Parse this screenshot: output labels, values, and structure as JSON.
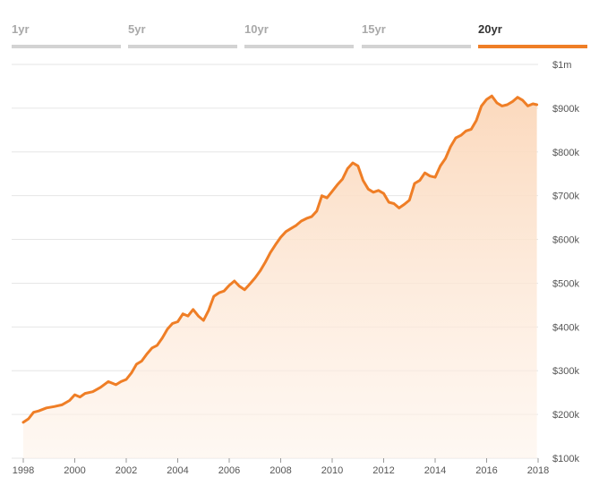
{
  "tabs": [
    {
      "label": "1yr",
      "active": false
    },
    {
      "label": "5yr",
      "active": false
    },
    {
      "label": "10yr",
      "active": false
    },
    {
      "label": "15yr",
      "active": false
    },
    {
      "label": "20yr",
      "active": true
    }
  ],
  "colors": {
    "accent": "#ef7e26",
    "inactive_tab_bar": "#d3d3d3",
    "inactive_tab_text": "#a9a9a9",
    "active_tab_text": "#333333",
    "grid": "#e6e6e6"
  },
  "chart_data": {
    "type": "area",
    "title": "",
    "xlabel": "",
    "ylabel": "",
    "xlim": [
      1998,
      2018
    ],
    "ylim": [
      100000,
      1000000
    ],
    "grid": true,
    "y_axis_side": "right",
    "x_ticks": [
      1998,
      2000,
      2002,
      2004,
      2006,
      2008,
      2010,
      2012,
      2014,
      2016,
      2018
    ],
    "x_tick_labels": [
      "1998",
      "2000",
      "2002",
      "2004",
      "2006",
      "2008",
      "2010",
      "2012",
      "2014",
      "2016",
      "2018"
    ],
    "y_ticks": [
      100000,
      200000,
      300000,
      400000,
      500000,
      600000,
      700000,
      800000,
      900000,
      1000000
    ],
    "y_tick_labels": [
      "$100k",
      "$200k",
      "$300k",
      "$400k",
      "$500k",
      "$600k",
      "$700k",
      "$800k",
      "$900k",
      "$1m"
    ],
    "series": [
      {
        "color": "#ef7e26",
        "x": [
          1998.0,
          1998.2,
          1998.4,
          1998.6,
          1998.9,
          1999.2,
          1999.5,
          1999.8,
          2000.0,
          2000.2,
          2000.4,
          2000.7,
          2001.0,
          2001.3,
          2001.6,
          2001.8,
          2002.0,
          2002.2,
          2002.4,
          2002.6,
          2002.8,
          2003.0,
          2003.2,
          2003.4,
          2003.6,
          2003.8,
          2004.0,
          2004.2,
          2004.4,
          2004.6,
          2004.8,
          2005.0,
          2005.2,
          2005.4,
          2005.6,
          2005.8,
          2006.0,
          2006.2,
          2006.4,
          2006.6,
          2006.8,
          2007.0,
          2007.2,
          2007.4,
          2007.6,
          2007.8,
          2008.0,
          2008.2,
          2008.4,
          2008.6,
          2008.8,
          2009.0,
          2009.2,
          2009.4,
          2009.6,
          2009.8,
          2010.0,
          2010.2,
          2010.4,
          2010.6,
          2010.8,
          2011.0,
          2011.2,
          2011.4,
          2011.6,
          2011.8,
          2012.0,
          2012.2,
          2012.4,
          2012.6,
          2012.8,
          2013.0,
          2013.2,
          2013.4,
          2013.6,
          2013.8,
          2014.0,
          2014.2,
          2014.4,
          2014.6,
          2014.8,
          2015.0,
          2015.2,
          2015.4,
          2015.6,
          2015.8,
          2016.0,
          2016.2,
          2016.4,
          2016.6,
          2016.8,
          2017.0,
          2017.2,
          2017.4,
          2017.6,
          2017.8,
          2017.95
        ],
        "values": [
          182000,
          190000,
          205000,
          208000,
          215000,
          218000,
          222000,
          232000,
          245000,
          240000,
          248000,
          252000,
          262000,
          275000,
          268000,
          275000,
          280000,
          295000,
          315000,
          322000,
          338000,
          352000,
          358000,
          375000,
          395000,
          408000,
          412000,
          430000,
          425000,
          440000,
          425000,
          415000,
          438000,
          470000,
          478000,
          482000,
          495000,
          505000,
          493000,
          485000,
          498000,
          512000,
          528000,
          548000,
          570000,
          588000,
          605000,
          618000,
          625000,
          632000,
          642000,
          648000,
          652000,
          665000,
          700000,
          695000,
          710000,
          725000,
          738000,
          762000,
          775000,
          768000,
          735000,
          715000,
          708000,
          712000,
          705000,
          685000,
          682000,
          672000,
          680000,
          690000,
          728000,
          735000,
          752000,
          745000,
          742000,
          768000,
          785000,
          812000,
          832000,
          838000,
          848000,
          852000,
          872000,
          905000,
          920000,
          928000,
          912000,
          905000,
          908000,
          915000,
          925000,
          918000,
          905000,
          910000,
          908000
        ]
      }
    ]
  }
}
